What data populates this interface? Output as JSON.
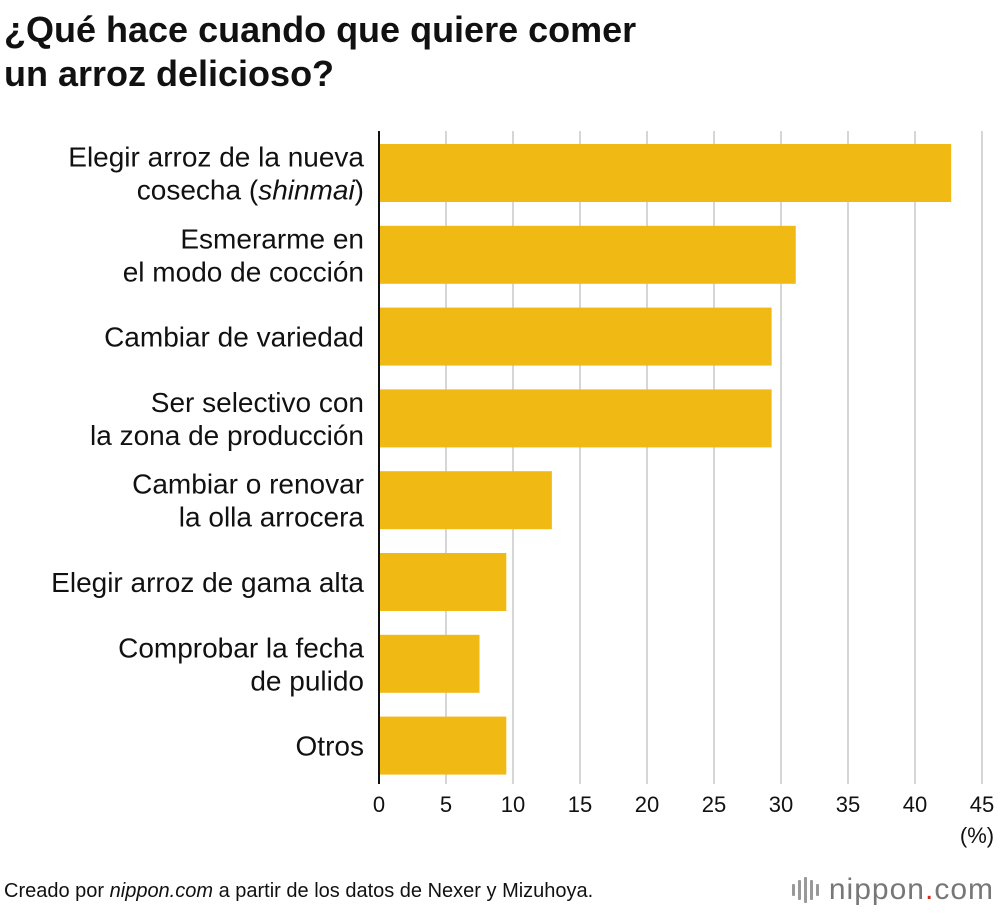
{
  "title": [
    "¿Qué hace cuando que quiere comer",
    "un arroz delicioso?"
  ],
  "chart_data": {
    "type": "bar",
    "orientation": "horizontal",
    "categories": [
      [
        "Elegir arroz de la nueva",
        "cosecha (shinmai)"
      ],
      [
        "Esmerarme en",
        "el modo de cocción"
      ],
      [
        "Cambiar de variedad"
      ],
      [
        "Ser selectivo con",
        "la zona de producción"
      ],
      [
        "Cambiar o renovar",
        "la olla arrocera"
      ],
      [
        "Elegir arroz de gama alta"
      ],
      [
        "Comprobar la fecha",
        "de pulido"
      ],
      [
        "Otros"
      ]
    ],
    "italic_term": "shinmai",
    "values": [
      42.7,
      31.1,
      29.3,
      29.3,
      12.9,
      9.5,
      7.5,
      9.5
    ],
    "xlim": [
      0,
      45
    ],
    "xticks": [
      0,
      5,
      10,
      15,
      20,
      25,
      30,
      35,
      40,
      45
    ],
    "unit": "(%)",
    "bar_color": "#f0b914",
    "grid": true
  },
  "footer": {
    "prefix": "Creado por ",
    "source": "nippon.com",
    "suffix": " a partir de los datos de Nexer y Mizuhoya."
  },
  "brand": {
    "name": "nippon",
    "dot": ".",
    "tld": "com"
  }
}
